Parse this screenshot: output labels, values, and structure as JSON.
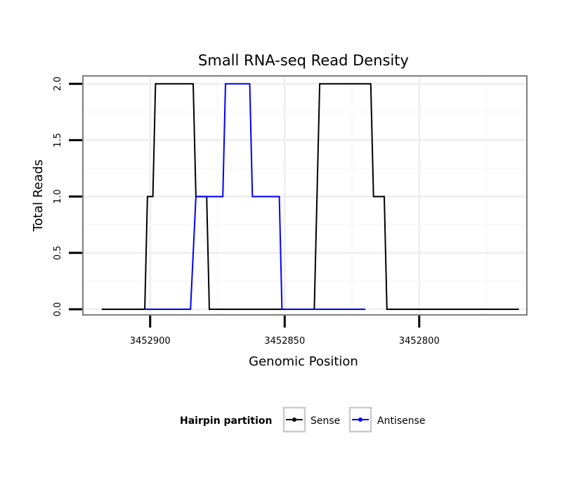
{
  "chart_data": {
    "type": "line",
    "title": "Small RNA-seq Read Density",
    "xlabel": "Genomic Position",
    "ylabel": "Total Reads",
    "x_reversed": true,
    "xlim": [
      3452925,
      3452760
    ],
    "ylim": [
      -0.05,
      2.07
    ],
    "x_ticks": [
      3452900,
      3452850,
      3452800
    ],
    "x_tick_labels": [
      "3452900",
      "3452850",
      "3452800"
    ],
    "y_ticks": [
      0,
      0.5,
      1,
      1.5,
      2
    ],
    "y_tick_labels": [
      "0.0",
      "0.5",
      "1.0",
      "1.5",
      "2.0"
    ],
    "grid": true,
    "legend_title": "Hairpin partition",
    "legend_position": "bottom",
    "series": [
      {
        "name": "Sense",
        "color": "#000000",
        "x": [
          3452918,
          3452902,
          3452901,
          3452899,
          3452898,
          3452884,
          3452883,
          3452882,
          3452881,
          3452879,
          3452878,
          3452839,
          3452837,
          3452818,
          3452817,
          3452813,
          3452812,
          3452763
        ],
        "y": [
          0,
          0,
          1,
          1,
          2,
          2,
          1,
          1,
          1,
          1,
          0,
          0,
          2,
          2,
          1,
          1,
          0,
          0
        ]
      },
      {
        "name": "Antisense",
        "color": "#0000ff",
        "x": [
          3452902,
          3452885,
          3452883,
          3452873,
          3452872,
          3452863,
          3452862,
          3452852,
          3452851,
          3452839,
          3452820
        ],
        "y": [
          0,
          0,
          1,
          1,
          2,
          2,
          1,
          1,
          0,
          0,
          0
        ]
      }
    ]
  }
}
